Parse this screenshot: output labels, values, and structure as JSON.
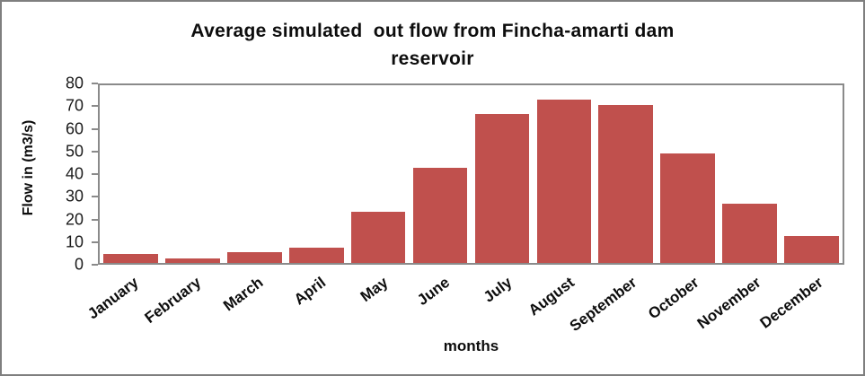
{
  "chart_data": {
    "type": "bar",
    "title": "Average simulated  out flow from Fincha-amarti dam reservoir",
    "title_line1": "Average simulated  out flow from Fincha-amarti dam",
    "title_line2": "reservoir",
    "categories": [
      "January",
      "February",
      "March",
      "April",
      "May",
      "June",
      "July",
      "August",
      "September",
      "October",
      "November",
      "December"
    ],
    "values": [
      4,
      2,
      5,
      7,
      23,
      43,
      67,
      73.5,
      71,
      49.5,
      26.5,
      12
    ],
    "xlabel": "months",
    "ylabel": "Flow in (m3/s)",
    "ylim": [
      0,
      80
    ],
    "y_ticks": [
      0,
      10,
      20,
      30,
      40,
      50,
      60,
      70,
      80
    ],
    "grid": false,
    "legend": "none",
    "colors": {
      "bar": "#C0504D",
      "axis": "#8A8A8A",
      "frame_border": "#7F7F7F",
      "text": "#111111"
    }
  }
}
